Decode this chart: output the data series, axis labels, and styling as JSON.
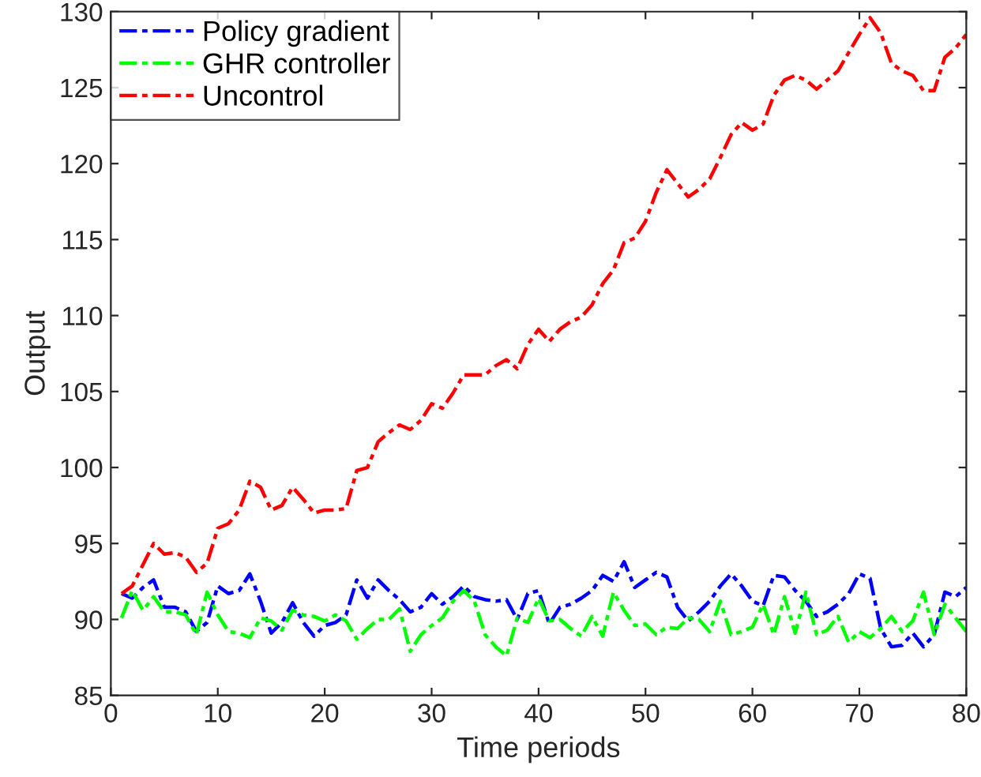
{
  "chart_data": {
    "type": "line",
    "xlabel": "Time periods",
    "ylabel": "Output",
    "x": [
      1,
      2,
      3,
      4,
      5,
      6,
      7,
      8,
      9,
      10,
      11,
      12,
      13,
      14,
      15,
      16,
      17,
      18,
      19,
      20,
      21,
      22,
      23,
      24,
      25,
      26,
      27,
      28,
      29,
      30,
      31,
      32,
      33,
      34,
      35,
      36,
      37,
      38,
      39,
      40,
      41,
      42,
      43,
      44,
      45,
      46,
      47,
      48,
      49,
      50,
      51,
      52,
      53,
      54,
      55,
      56,
      57,
      58,
      59,
      60,
      61,
      62,
      63,
      64,
      65,
      66,
      67,
      68,
      69,
      70,
      71,
      72,
      73,
      74,
      75,
      76,
      77,
      78,
      79,
      80
    ],
    "series": [
      {
        "name": "Policy gradient",
        "color": "#0000ff",
        "values": [
          91.7,
          91.4,
          92.1,
          92.6,
          90.8,
          90.8,
          90.5,
          89.2,
          89.8,
          92.2,
          91.7,
          91.9,
          93.0,
          91.2,
          89.1,
          89.8,
          91.1,
          89.8,
          88.9,
          89.6,
          89.8,
          90.3,
          92.6,
          91.4,
          92.6,
          91.9,
          91.3,
          90.5,
          90.8,
          91.7,
          91.0,
          91.5,
          92.2,
          91.5,
          91.3,
          91.2,
          91.3,
          90.0,
          91.7,
          91.9,
          89.7,
          90.8,
          91.0,
          91.4,
          91.9,
          92.9,
          92.5,
          93.8,
          92.1,
          92.6,
          93.1,
          92.8,
          90.8,
          89.9,
          90.5,
          91.2,
          92.2,
          93.0,
          92.2,
          91.2,
          90.9,
          92.9,
          92.8,
          91.9,
          91.2,
          90.2,
          90.5,
          91.0,
          91.7,
          93.0,
          92.7,
          89.4,
          88.2,
          88.3,
          89.1,
          88.2,
          89.0,
          91.8,
          91.5,
          92.1
        ]
      },
      {
        "name": "GHR controller",
        "color": "#00ff00",
        "values": [
          90.1,
          91.9,
          90.6,
          91.5,
          90.5,
          90.5,
          90.3,
          89.0,
          91.8,
          90.3,
          89.2,
          89.1,
          88.8,
          90.1,
          89.9,
          89.3,
          90.6,
          90.3,
          90.2,
          89.9,
          90.3,
          89.9,
          88.7,
          89.4,
          90.0,
          90.0,
          90.7,
          87.9,
          89.0,
          89.6,
          90.1,
          91.2,
          91.9,
          91.2,
          89.0,
          88.2,
          87.6,
          90.1,
          89.8,
          91.4,
          89.9,
          90.0,
          89.4,
          88.9,
          90.2,
          88.9,
          91.8,
          90.6,
          89.6,
          89.7,
          89.0,
          89.5,
          89.4,
          90.1,
          90.0,
          89.2,
          91.2,
          89.0,
          89.2,
          89.5,
          91.0,
          89.0,
          91.5,
          89.1,
          91.8,
          89.0,
          89.3,
          90.2,
          88.5,
          89.2,
          88.8,
          89.4,
          90.2,
          89.2,
          89.9,
          91.8,
          89.0,
          91.0,
          90.1,
          89.2
        ]
      },
      {
        "name": "Uncontrol",
        "color": "#ff0000",
        "values": [
          91.7,
          92.2,
          93.6,
          95.0,
          94.3,
          94.4,
          94.1,
          93.1,
          93.7,
          96.0,
          96.3,
          97.2,
          99.1,
          98.7,
          97.2,
          97.5,
          98.7,
          97.9,
          97.0,
          97.2,
          97.2,
          97.3,
          99.8,
          100.0,
          101.7,
          102.3,
          102.8,
          102.5,
          103.1,
          104.2,
          103.9,
          104.9,
          106.1,
          106.1,
          106.1,
          106.7,
          107.1,
          106.5,
          108.1,
          109.1,
          108.3,
          109.1,
          109.6,
          109.9,
          110.7,
          112.1,
          113.0,
          114.8,
          115.1,
          116.2,
          118.1,
          119.6,
          118.7,
          117.8,
          118.3,
          119.0,
          120.4,
          121.9,
          122.7,
          122.2,
          122.6,
          124.5,
          125.5,
          125.8,
          125.5,
          124.9,
          125.5,
          126.1,
          127.3,
          128.5,
          129.6,
          128.6,
          126.6,
          126.1,
          125.8,
          124.8,
          124.8,
          127.0,
          127.6,
          128.5
        ]
      }
    ],
    "xlim": [
      0,
      80
    ],
    "xticks": [
      0,
      10,
      20,
      30,
      40,
      50,
      60,
      70,
      80
    ],
    "ylim": [
      85,
      130
    ],
    "yticks": [
      85,
      90,
      95,
      100,
      105,
      110,
      115,
      120,
      125,
      130
    ],
    "grid": false,
    "legend": "top left",
    "marker": "none",
    "line_style": "dashed"
  }
}
